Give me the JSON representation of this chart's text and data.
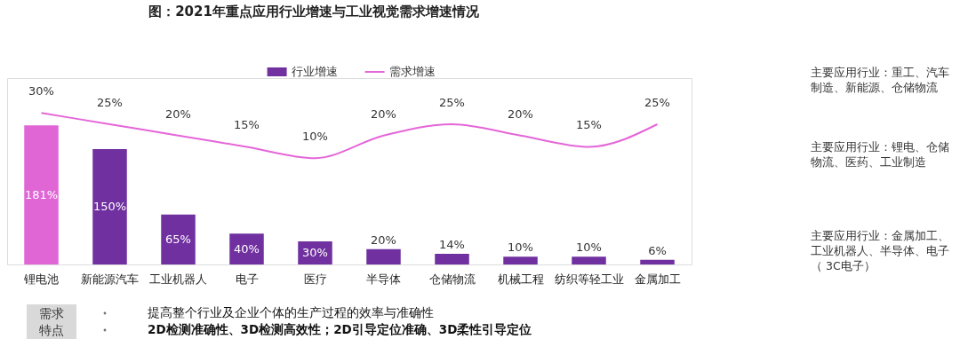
{
  "chart_data": {
    "type": "bar",
    "title": "图：2021年重点应用行业增速与工业视觉需求增速情况",
    "categories": [
      "锂电池",
      "新能源汽车",
      "工业机器人",
      "电子",
      "医疗",
      "半导体",
      "仓储物流",
      "机械工程",
      "纺织等轻工业",
      "金属加工"
    ],
    "series": [
      {
        "name": "行业增速",
        "color": "#7030a0",
        "colors": [
          "#e066d6",
          "#7030a0",
          "#7030a0",
          "#7030a0",
          "#7030a0",
          "#7030a0",
          "#7030a0",
          "#7030a0",
          "#7030a0",
          "#7030a0"
        ],
        "values": [
          181,
          150,
          65,
          40,
          30,
          20,
          14,
          10,
          10,
          6
        ],
        "value_labels": [
          "181%",
          "150%",
          "65%",
          "40%",
          "30%",
          "20%",
          "14%",
          "10%",
          "10%",
          "6%"
        ]
      },
      {
        "name": "需求增速",
        "type": "line",
        "axis": "y2",
        "color": "#e466d8",
        "values": [
          30,
          25,
          20,
          15,
          10,
          20,
          25,
          20,
          15,
          25
        ],
        "value_labels": [
          "30%",
          "25%",
          "20%",
          "15%",
          "10%",
          "20%",
          "25%",
          "20%",
          "15%",
          "25%"
        ]
      }
    ],
    "legend": "top",
    "grid": false,
    "tick_labels": "x",
    "annotations": [
      "主要应用行业：重工、汽车制造、新能源、仓储物流",
      "主要应用行业：锂电、仓储物流、医药、工业制造",
      "主要应用行业：金属加工、工业机器人、半导体、电子（ 3C电子）",
      "需求特点",
      "提高整个行业及企业个体的生产过程的效率与准确性",
      "2D检测准确性、3D检测高效性；2D引导定位准确、3D柔性引导定位"
    ]
  }
}
